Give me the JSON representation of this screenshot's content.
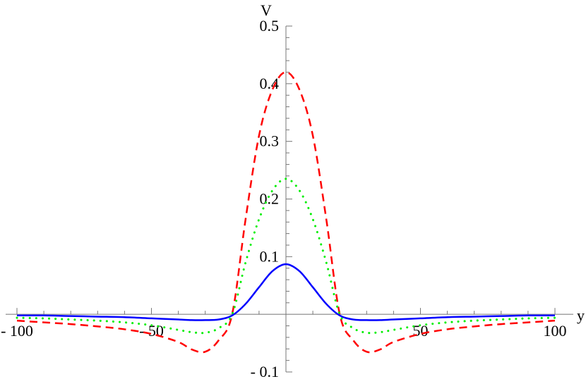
{
  "chart_data": {
    "type": "line",
    "title": "",
    "xlabel": "y",
    "ylabel": "V",
    "xlim": [
      -100,
      100
    ],
    "ylim": [
      -0.1,
      0.5
    ],
    "grid": false,
    "x_ticks": [
      {
        "value": -100,
        "label": "- 100"
      },
      {
        "value": -50,
        "label": "- 50"
      },
      {
        "value": 50,
        "label": "50"
      },
      {
        "value": 100,
        "label": "100"
      }
    ],
    "y_ticks": [
      {
        "value": -0.1,
        "label": "- 0.1"
      },
      {
        "value": 0.1,
        "label": "0.1"
      },
      {
        "value": 0.2,
        "label": "0.2"
      },
      {
        "value": 0.3,
        "label": "0.3"
      },
      {
        "value": 0.4,
        "label": "0.4"
      },
      {
        "value": 0.5,
        "label": "0.5"
      }
    ],
    "x": [
      0,
      5,
      10,
      15,
      20,
      25,
      30,
      35,
      40,
      50,
      60,
      70,
      80,
      90,
      100
    ],
    "symmetric_about_zero": true,
    "series": [
      {
        "name": "red-dashed",
        "color": "#ff0000",
        "style": "dashed",
        "values": [
          0.42,
          0.39,
          0.31,
          0.165,
          0.0,
          -0.045,
          -0.065,
          -0.061,
          -0.048,
          -0.034,
          -0.026,
          -0.021,
          -0.017,
          -0.014,
          -0.011
        ]
      },
      {
        "name": "green-dotted",
        "color": "#00ee00",
        "style": "dotted",
        "values": [
          0.235,
          0.215,
          0.165,
          0.09,
          0.0,
          -0.024,
          -0.032,
          -0.031,
          -0.027,
          -0.019,
          -0.014,
          -0.011,
          -0.009,
          -0.007,
          -0.006
        ]
      },
      {
        "name": "blue-solid",
        "color": "#0000ff",
        "style": "solid",
        "values": [
          0.087,
          0.075,
          0.047,
          0.018,
          -0.002,
          -0.009,
          -0.01,
          -0.01,
          -0.009,
          -0.007,
          -0.005,
          -0.004,
          -0.003,
          -0.002,
          -0.002
        ]
      }
    ]
  }
}
